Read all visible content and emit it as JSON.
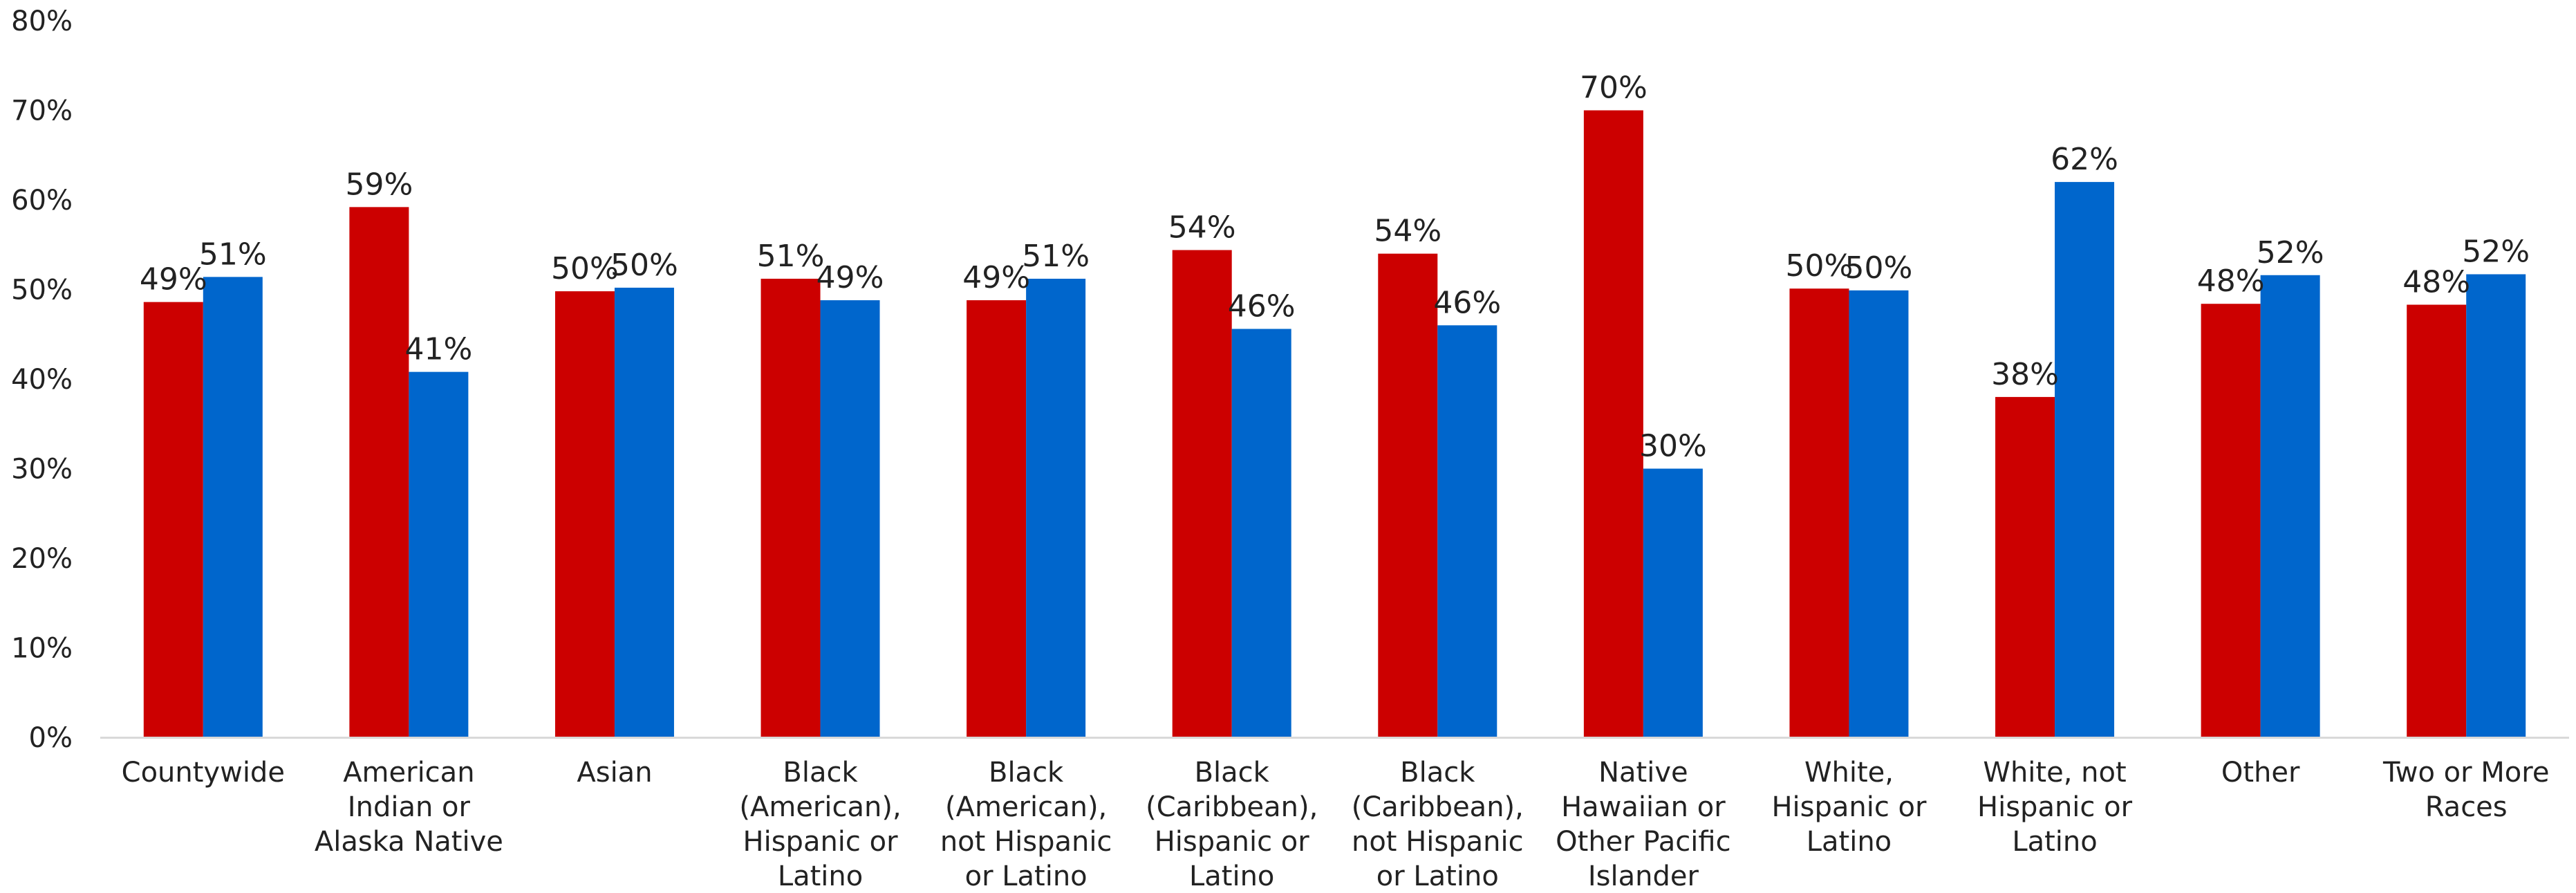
{
  "chart_data": {
    "type": "bar",
    "title": "",
    "xlabel": "",
    "ylabel": "",
    "ylim": [
      0,
      80
    ],
    "y_ticks": [
      "0%",
      "10%",
      "20%",
      "30%",
      "40%",
      "50%",
      "60%",
      "70%",
      "80%"
    ],
    "grid": false,
    "legend": "none",
    "categories": [
      [
        "Countywide"
      ],
      [
        "American",
        "Indian or",
        "Alaska Native"
      ],
      [
        "Asian"
      ],
      [
        "Black",
        "(American),",
        "Hispanic or",
        "Latino"
      ],
      [
        "Black",
        "(American),",
        "not Hispanic",
        "or Latino"
      ],
      [
        "Black",
        "(Caribbean),",
        "Hispanic or",
        "Latino"
      ],
      [
        "Black",
        "(Caribbean),",
        "not Hispanic",
        "or Latino"
      ],
      [
        "Native",
        "Hawaiian or",
        "Other Pacific",
        "Islander"
      ],
      [
        "White,",
        "Hispanic or",
        "Latino"
      ],
      [
        "White, not",
        "Hispanic or",
        "Latino"
      ],
      [
        "Other"
      ],
      [
        "Two or More",
        "Races"
      ]
    ],
    "series": [
      {
        "color": "#cc0000",
        "values": [
          48.6,
          59.2,
          49.8,
          51.2,
          48.8,
          54.4,
          54.0,
          70.0,
          50.1,
          38.0,
          48.4,
          48.3
        ],
        "labels": [
          "49%",
          "59%",
          "50%",
          "51%",
          "49%",
          "54%",
          "54%",
          "70%",
          "50%",
          "38%",
          "48%",
          "48%"
        ]
      },
      {
        "color": "#0066cc",
        "values": [
          51.4,
          40.8,
          50.2,
          48.8,
          51.2,
          45.6,
          46.0,
          30.0,
          49.9,
          62.0,
          51.6,
          51.7
        ],
        "labels": [
          "51%",
          "41%",
          "50%",
          "49%",
          "51%",
          "46%",
          "46%",
          "30%",
          "50%",
          "62%",
          "52%",
          "52%"
        ]
      }
    ]
  }
}
